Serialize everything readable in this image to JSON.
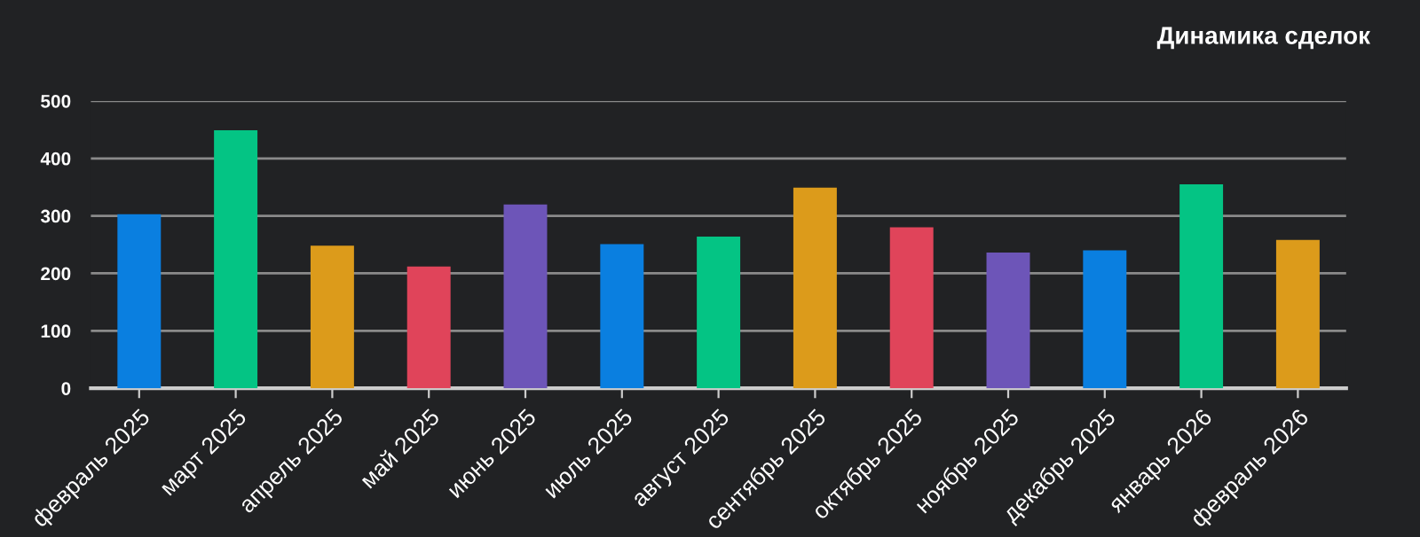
{
  "chart_data": {
    "type": "bar",
    "title": "Динамика сделок",
    "categories": [
      "февраль 2025",
      "март 2025",
      "апрель 2025",
      "май 2025",
      "июнь 2025",
      "июль 2025",
      "август 2025",
      "сентябрь 2025",
      "октябрь 2025",
      "ноябрь 2025",
      "декабрь 2025",
      "январь 2026",
      "февраль 2026"
    ],
    "values": [
      303,
      449,
      248,
      212,
      320,
      251,
      264,
      349,
      280,
      236,
      240,
      355,
      258
    ],
    "colors": [
      "#0a7fe0",
      "#04c484",
      "#dc9b1b",
      "#e0445a",
      "#6d55b8",
      "#0a7fe0",
      "#04c484",
      "#dc9b1b",
      "#e0445a",
      "#6d55b8",
      "#0a7fe0",
      "#04c484",
      "#dc9b1b"
    ],
    "ylim": [
      0,
      500
    ],
    "yticks": [
      0,
      100,
      200,
      300,
      400,
      500
    ],
    "grid": "y",
    "legend": false
  }
}
